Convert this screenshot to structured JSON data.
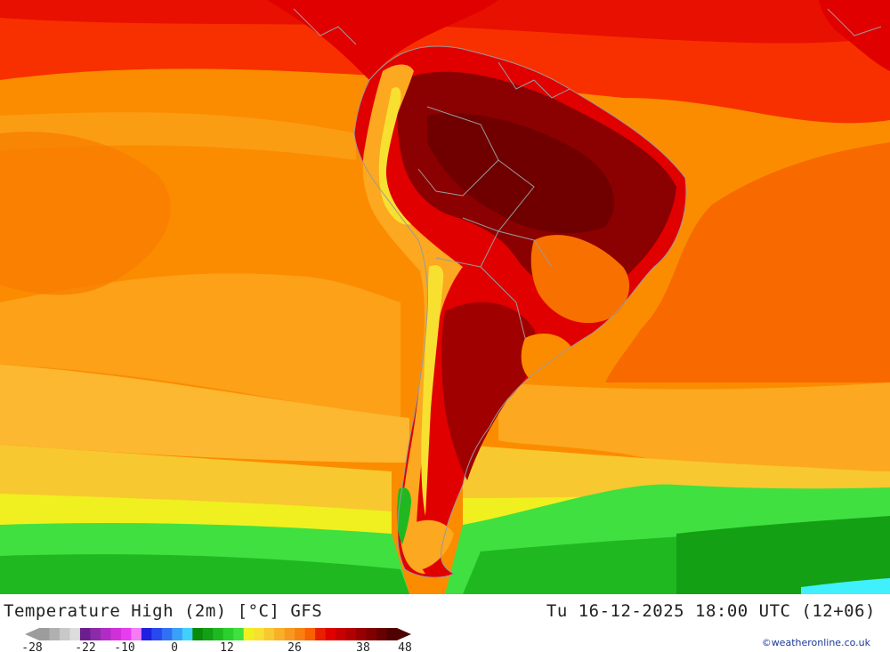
{
  "header": {
    "title": "Temperature High (2m) [°C] GFS",
    "timestamp": "Tu 16-12-2025 18:00 UTC (12+06)"
  },
  "legend": {
    "tick_labels": [
      "-28",
      "-22",
      "-10",
      "0",
      "12",
      "26",
      "38",
      "48"
    ],
    "colors": [
      "#9c9c9c",
      "#b0b0b0",
      "#c8c8c8",
      "#dcdcdc",
      "#6a1f8c",
      "#8c2aa8",
      "#b02cc4",
      "#d030d8",
      "#e83cf0",
      "#f47cf4",
      "#2020e0",
      "#2848f0",
      "#3070f4",
      "#38a0f8",
      "#40d0fc",
      "#0a8a0a",
      "#14a014",
      "#20b820",
      "#2cd02c",
      "#40e040",
      "#f0f020",
      "#f8e030",
      "#f8c830",
      "#f8b028",
      "#f89820",
      "#f88010",
      "#f86000",
      "#e82000",
      "#e00000",
      "#c80000",
      "#b00000",
      "#980000",
      "#800000",
      "#680000",
      "#500000"
    ]
  },
  "credit": "©weatheronline.co.uk",
  "colors": {
    "hot_dark": "#8b0000",
    "hot": "#e00000",
    "warm_red": "#f83000",
    "orange": "#fb8c00",
    "light_orange": "#fca820",
    "yellow": "#f8e030",
    "green_light": "#40e040",
    "green": "#14a014",
    "cyan": "#40f0fc"
  }
}
